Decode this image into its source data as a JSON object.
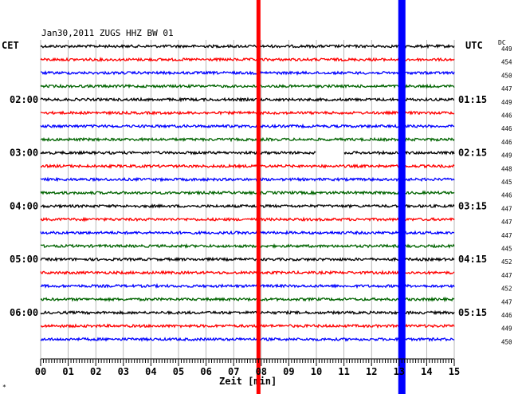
{
  "chart_data": {
    "type": "line",
    "title": "Jan30,2011   ZUGS HHZ BW 01",
    "left_axis_label": "CET",
    "right_axis_label": "UTC",
    "dc_label": "DC",
    "xlabel": "Zeit [min]",
    "x_ticks": [
      "00",
      "01",
      "02",
      "03",
      "04",
      "05",
      "06",
      "07",
      "08",
      "09",
      "10",
      "11",
      "12",
      "13",
      "14",
      "15"
    ],
    "xlim": [
      0,
      15
    ],
    "left_time_labels": [
      {
        "row": 4,
        "text": "02:00"
      },
      {
        "row": 8,
        "text": "03:00"
      },
      {
        "row": 12,
        "text": "04:00"
      },
      {
        "row": 16,
        "text": "05:00"
      },
      {
        "row": 20,
        "text": "06:00"
      }
    ],
    "right_time_labels": [
      {
        "row": 4,
        "text": "01:15"
      },
      {
        "row": 8,
        "text": "02:15"
      },
      {
        "row": 12,
        "text": "03:15"
      },
      {
        "row": 16,
        "text": "04:15"
      },
      {
        "row": 20,
        "text": "05:15"
      }
    ],
    "dc_values": [
      "449",
      "454",
      "450",
      "447",
      "449",
      "446",
      "446",
      "446",
      "449",
      "448",
      "445",
      "446",
      "447",
      "447",
      "447",
      "445",
      "452",
      "447",
      "452",
      "447",
      "446",
      "449",
      "450"
    ],
    "trace_colors": [
      "#000000",
      "#ff0000",
      "#0000ff",
      "#006400"
    ],
    "markers": [
      {
        "color": "#ff0000",
        "minute": 7.9
      },
      {
        "color": "#0000ff",
        "minute": 13.1
      }
    ],
    "data_gap": {
      "row": 8,
      "start_minute": 10.0,
      "end_minute": 11.0
    },
    "corner_mark": "*"
  }
}
